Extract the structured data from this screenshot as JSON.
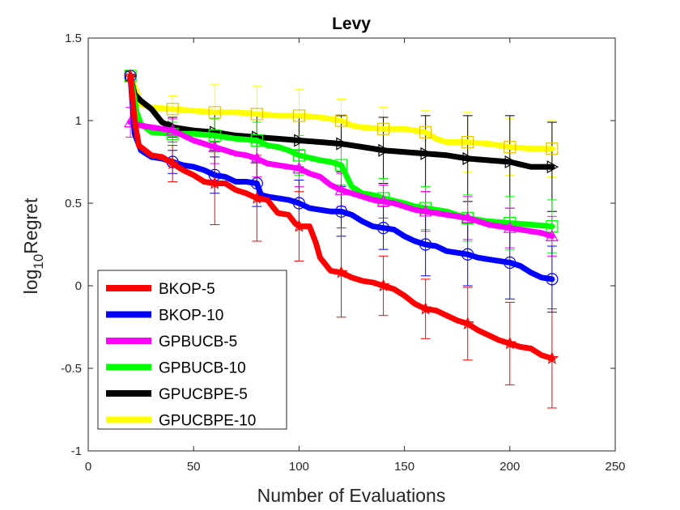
{
  "chart_data": {
    "type": "line",
    "title": "Levy",
    "xlabel": "Number of Evaluations",
    "ylabel_main": "log",
    "ylabel_sub": "10",
    "ylabel_rest": "Regret",
    "xlim": [
      0,
      250
    ],
    "ylim": [
      -1,
      1.5
    ],
    "xticks": [
      0,
      50,
      100,
      150,
      200,
      250
    ],
    "yticks": [
      -1,
      -0.5,
      0,
      0.5,
      1,
      1.5
    ],
    "xtick_labels": [
      "0",
      "50",
      "100",
      "150",
      "200",
      "250"
    ],
    "ytick_labels": [
      "-1",
      "-0.5",
      "0",
      "0.5",
      "1",
      "1.5"
    ],
    "legend_position": "bottom-left",
    "x": [
      20,
      40,
      60,
      80,
      100,
      120,
      140,
      160,
      180,
      200,
      220
    ],
    "series": [
      {
        "name": "BKOP-5",
        "color": "#ff0000",
        "marker": "star",
        "curve": [
          [
            20,
            1.27
          ],
          [
            22,
            1.0
          ],
          [
            24,
            0.85
          ],
          [
            27,
            0.82
          ],
          [
            30,
            0.79
          ],
          [
            35,
            0.78
          ],
          [
            40,
            0.74
          ],
          [
            45,
            0.7
          ],
          [
            50,
            0.67
          ],
          [
            55,
            0.63
          ],
          [
            60,
            0.62
          ],
          [
            65,
            0.62
          ],
          [
            70,
            0.58
          ],
          [
            75,
            0.56
          ],
          [
            80,
            0.53
          ],
          [
            85,
            0.52
          ],
          [
            88,
            0.47
          ],
          [
            90,
            0.44
          ],
          [
            95,
            0.43
          ],
          [
            98,
            0.38
          ],
          [
            100,
            0.36
          ],
          [
            105,
            0.36
          ],
          [
            108,
            0.26
          ],
          [
            110,
            0.17
          ],
          [
            115,
            0.09
          ],
          [
            120,
            0.08
          ],
          [
            125,
            0.05
          ],
          [
            130,
            0.03
          ],
          [
            135,
            0.02
          ],
          [
            140,
            0.0
          ],
          [
            145,
            -0.02
          ],
          [
            150,
            -0.06
          ],
          [
            155,
            -0.11
          ],
          [
            160,
            -0.14
          ],
          [
            165,
            -0.15
          ],
          [
            170,
            -0.18
          ],
          [
            175,
            -0.21
          ],
          [
            180,
            -0.23
          ],
          [
            185,
            -0.27
          ],
          [
            190,
            -0.3
          ],
          [
            195,
            -0.33
          ],
          [
            200,
            -0.35
          ],
          [
            205,
            -0.37
          ],
          [
            210,
            -0.38
          ],
          [
            215,
            -0.42
          ],
          [
            220,
            -0.44
          ]
        ],
        "values": [
          1.27,
          0.74,
          0.62,
          0.53,
          0.36,
          0.08,
          0.0,
          -0.14,
          -0.23,
          -0.35,
          -0.44
        ],
        "err": [
          0.0,
          0.11,
          0.25,
          0.26,
          0.21,
          0.27,
          0.18,
          0.18,
          0.22,
          0.25,
          0.3
        ]
      },
      {
        "name": "BKOP-10",
        "color": "#0000ff",
        "marker": "circle",
        "curve": [
          [
            20,
            1.27
          ],
          [
            22,
            0.92
          ],
          [
            25,
            0.82
          ],
          [
            30,
            0.78
          ],
          [
            35,
            0.77
          ],
          [
            40,
            0.75
          ],
          [
            45,
            0.73
          ],
          [
            50,
            0.72
          ],
          [
            55,
            0.7
          ],
          [
            60,
            0.67
          ],
          [
            65,
            0.66
          ],
          [
            70,
            0.63
          ],
          [
            75,
            0.63
          ],
          [
            80,
            0.62
          ],
          [
            82,
            0.55
          ],
          [
            85,
            0.54
          ],
          [
            90,
            0.53
          ],
          [
            95,
            0.52
          ],
          [
            100,
            0.5
          ],
          [
            105,
            0.47
          ],
          [
            110,
            0.46
          ],
          [
            115,
            0.45
          ],
          [
            120,
            0.45
          ],
          [
            125,
            0.43
          ],
          [
            130,
            0.39
          ],
          [
            135,
            0.36
          ],
          [
            140,
            0.35
          ],
          [
            145,
            0.34
          ],
          [
            150,
            0.3
          ],
          [
            155,
            0.27
          ],
          [
            160,
            0.25
          ],
          [
            165,
            0.24
          ],
          [
            170,
            0.21
          ],
          [
            175,
            0.2
          ],
          [
            180,
            0.19
          ],
          [
            185,
            0.17
          ],
          [
            190,
            0.16
          ],
          [
            195,
            0.15
          ],
          [
            200,
            0.14
          ],
          [
            205,
            0.12
          ],
          [
            210,
            0.08
          ],
          [
            215,
            0.05
          ],
          [
            220,
            0.04
          ]
        ],
        "values": [
          1.27,
          0.75,
          0.67,
          0.62,
          0.5,
          0.45,
          0.35,
          0.25,
          0.19,
          0.14,
          0.04
        ],
        "err": [
          0.0,
          0.07,
          0.11,
          0.14,
          0.14,
          0.15,
          0.13,
          0.19,
          0.19,
          0.22,
          0.2
        ]
      },
      {
        "name": "GPBUCB-5",
        "color": "#ff00ff",
        "marker": "triangle-up",
        "curve": [
          [
            20,
            0.99
          ],
          [
            25,
            0.97
          ],
          [
            30,
            0.96
          ],
          [
            35,
            0.95
          ],
          [
            40,
            0.94
          ],
          [
            45,
            0.91
          ],
          [
            50,
            0.88
          ],
          [
            55,
            0.86
          ],
          [
            60,
            0.84
          ],
          [
            65,
            0.82
          ],
          [
            70,
            0.8
          ],
          [
            75,
            0.79
          ],
          [
            80,
            0.77
          ],
          [
            85,
            0.74
          ],
          [
            90,
            0.73
          ],
          [
            95,
            0.72
          ],
          [
            100,
            0.71
          ],
          [
            105,
            0.68
          ],
          [
            110,
            0.66
          ],
          [
            115,
            0.61
          ],
          [
            120,
            0.58
          ],
          [
            125,
            0.56
          ],
          [
            130,
            0.54
          ],
          [
            135,
            0.52
          ],
          [
            140,
            0.51
          ],
          [
            145,
            0.5
          ],
          [
            150,
            0.48
          ],
          [
            155,
            0.46
          ],
          [
            160,
            0.45
          ],
          [
            165,
            0.44
          ],
          [
            170,
            0.43
          ],
          [
            175,
            0.42
          ],
          [
            180,
            0.41
          ],
          [
            185,
            0.39
          ],
          [
            190,
            0.37
          ],
          [
            195,
            0.36
          ],
          [
            200,
            0.35
          ],
          [
            205,
            0.34
          ],
          [
            210,
            0.33
          ],
          [
            215,
            0.32
          ],
          [
            220,
            0.3
          ]
        ],
        "values": [
          0.99,
          0.94,
          0.84,
          0.77,
          0.71,
          0.58,
          0.51,
          0.45,
          0.41,
          0.35,
          0.3
        ],
        "err": [
          0.09,
          0.07,
          0.1,
          0.11,
          0.11,
          0.1,
          0.1,
          0.12,
          0.13,
          0.12,
          0.12
        ]
      },
      {
        "name": "GPBUCB-10",
        "color": "#00ff00",
        "marker": "square",
        "curve": [
          [
            20,
            1.27
          ],
          [
            23,
            1.05
          ],
          [
            25,
            0.98
          ],
          [
            30,
            0.93
          ],
          [
            40,
            0.92
          ],
          [
            50,
            0.92
          ],
          [
            60,
            0.91
          ],
          [
            70,
            0.89
          ],
          [
            80,
            0.88
          ],
          [
            85,
            0.85
          ],
          [
            90,
            0.84
          ],
          [
            95,
            0.82
          ],
          [
            100,
            0.79
          ],
          [
            110,
            0.76
          ],
          [
            115,
            0.75
          ],
          [
            120,
            0.73
          ],
          [
            125,
            0.6
          ],
          [
            130,
            0.56
          ],
          [
            135,
            0.55
          ],
          [
            140,
            0.53
          ],
          [
            150,
            0.5
          ],
          [
            155,
            0.48
          ],
          [
            160,
            0.47
          ],
          [
            170,
            0.45
          ],
          [
            175,
            0.43
          ],
          [
            180,
            0.41
          ],
          [
            190,
            0.39
          ],
          [
            200,
            0.38
          ],
          [
            210,
            0.37
          ],
          [
            220,
            0.36
          ]
        ],
        "values": [
          1.27,
          0.92,
          0.91,
          0.88,
          0.79,
          0.73,
          0.53,
          0.47,
          0.41,
          0.38,
          0.36
        ],
        "err": [
          0.0,
          0.07,
          0.1,
          0.11,
          0.12,
          0.12,
          0.12,
          0.13,
          0.14,
          0.16,
          0.16
        ]
      },
      {
        "name": "GPUCBPE-5",
        "color": "#000000",
        "marker": "triangle-right",
        "curve": [
          [
            20,
            1.27
          ],
          [
            22,
            1.16
          ],
          [
            25,
            1.12
          ],
          [
            30,
            1.07
          ],
          [
            35,
            0.99
          ],
          [
            40,
            0.96
          ],
          [
            45,
            0.95
          ],
          [
            50,
            0.94
          ],
          [
            60,
            0.93
          ],
          [
            70,
            0.91
          ],
          [
            80,
            0.9
          ],
          [
            90,
            0.89
          ],
          [
            100,
            0.88
          ],
          [
            110,
            0.87
          ],
          [
            120,
            0.86
          ],
          [
            130,
            0.84
          ],
          [
            140,
            0.82
          ],
          [
            150,
            0.81
          ],
          [
            160,
            0.8
          ],
          [
            170,
            0.79
          ],
          [
            180,
            0.77
          ],
          [
            190,
            0.76
          ],
          [
            200,
            0.75
          ],
          [
            210,
            0.72
          ],
          [
            220,
            0.72
          ]
        ],
        "values": [
          1.27,
          0.96,
          0.93,
          0.9,
          0.88,
          0.86,
          0.82,
          0.8,
          0.77,
          0.75,
          0.72
        ],
        "err": [
          0.0,
          0.06,
          0.11,
          0.15,
          0.16,
          0.17,
          0.2,
          0.23,
          0.26,
          0.28,
          0.27
        ]
      },
      {
        "name": "GPUCBPE-10",
        "color": "#ffff00",
        "marker": "square",
        "curve": [
          [
            20,
            1.27
          ],
          [
            25,
            1.1
          ],
          [
            30,
            1.08
          ],
          [
            40,
            1.07
          ],
          [
            50,
            1.06
          ],
          [
            60,
            1.05
          ],
          [
            70,
            1.05
          ],
          [
            80,
            1.04
          ],
          [
            90,
            1.03
          ],
          [
            100,
            1.03
          ],
          [
            110,
            1.02
          ],
          [
            120,
            1.0
          ],
          [
            125,
            0.97
          ],
          [
            130,
            0.96
          ],
          [
            140,
            0.95
          ],
          [
            150,
            0.95
          ],
          [
            160,
            0.93
          ],
          [
            165,
            0.89
          ],
          [
            170,
            0.87
          ],
          [
            180,
            0.87
          ],
          [
            190,
            0.86
          ],
          [
            200,
            0.84
          ],
          [
            210,
            0.83
          ],
          [
            220,
            0.83
          ]
        ],
        "values": [
          1.27,
          1.07,
          1.05,
          1.04,
          1.03,
          1.0,
          0.95,
          0.93,
          0.87,
          0.84,
          0.83
        ],
        "err": [
          0.0,
          0.08,
          0.17,
          0.17,
          0.16,
          0.13,
          0.13,
          0.13,
          0.18,
          0.17,
          0.17
        ]
      }
    ]
  }
}
